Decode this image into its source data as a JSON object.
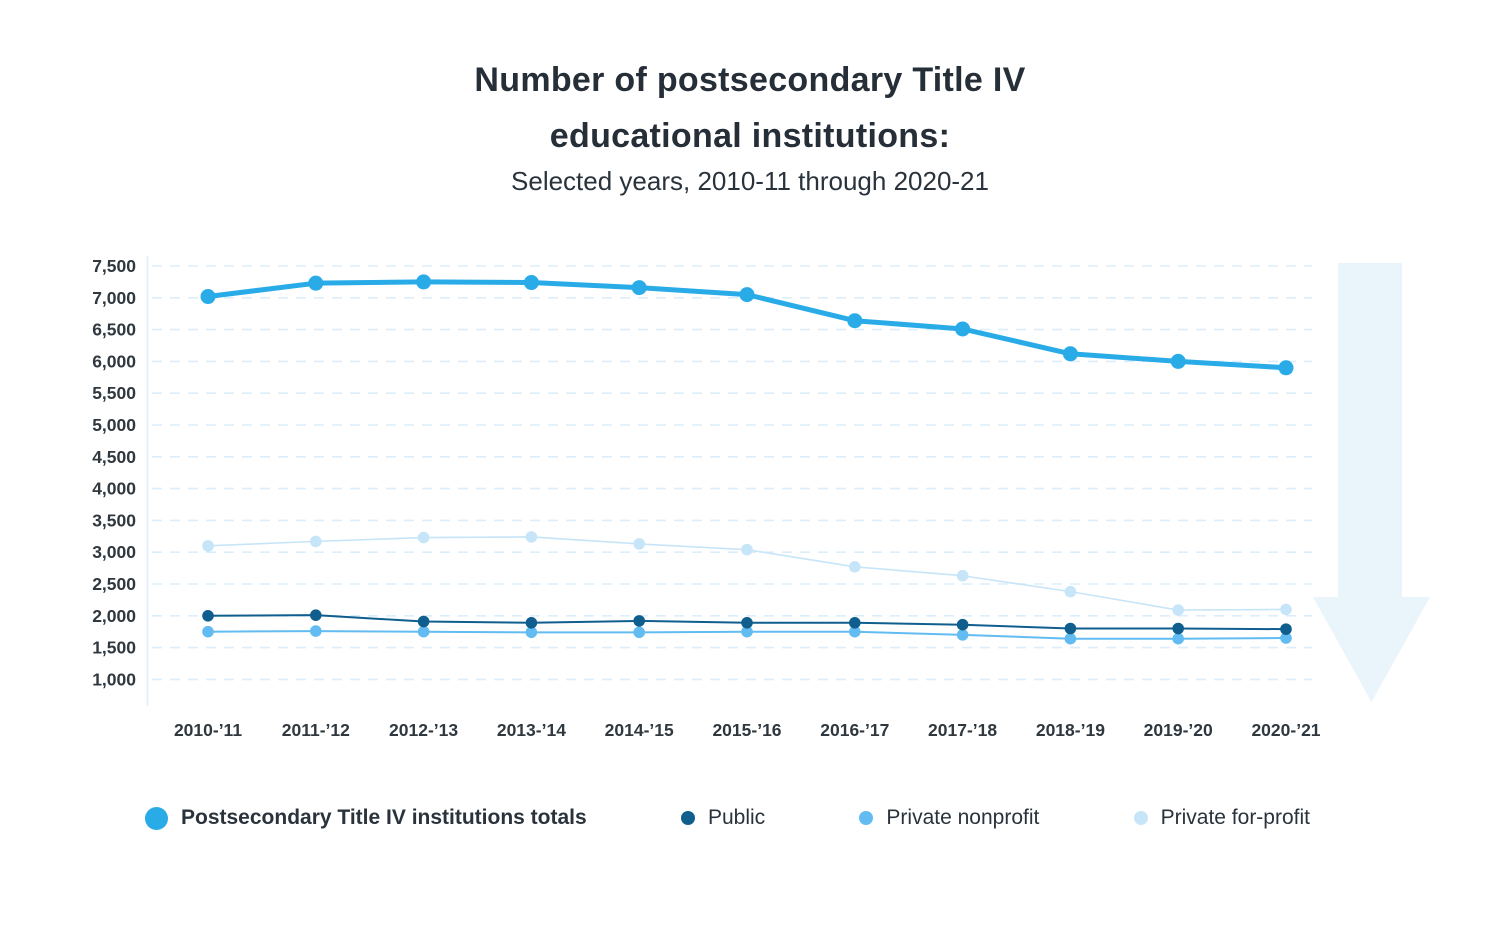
{
  "header": {
    "title_line1": "Number of postsecondary Title IV",
    "title_line2": "educational institutions:",
    "subtitle": "Selected years, 2010-11 through 2020-21"
  },
  "chart_data": {
    "type": "line",
    "title": "Number of postsecondary Title IV educational institutions:",
    "subtitle": "Selected years, 2010-11 through 2020-21",
    "categories": [
      "2010-’11",
      "2011-’12",
      "2012-’13",
      "2013-’14",
      "2014-’15",
      "2015-’16",
      "2016-’17",
      "2017-’18",
      "2018-’19",
      "2019-’20",
      "2020-’21"
    ],
    "y_axis": {
      "min": 1000,
      "max": 7500,
      "step": 500,
      "tick_labels": [
        "1,000",
        "1,500",
        "2,000",
        "2,500",
        "3,000",
        "3,500",
        "4,000",
        "4,500",
        "5,000",
        "5,500",
        "6,000",
        "6,500",
        "7,000",
        "7,500"
      ]
    },
    "grid": "horizontal-dashed",
    "legend_position": "bottom",
    "series": [
      {
        "name": "Postsecondary Title IV institutions totals",
        "color": "#29ABE8",
        "emphasis": true,
        "values": [
          7020,
          7230,
          7250,
          7240,
          7160,
          7050,
          6640,
          6510,
          6120,
          6000,
          5900
        ]
      },
      {
        "name": "Public",
        "color": "#0F5E8E",
        "emphasis": false,
        "values": [
          2000,
          2010,
          1910,
          1890,
          1920,
          1890,
          1890,
          1860,
          1800,
          1800,
          1790
        ]
      },
      {
        "name": "Private nonprofit",
        "color": "#62BCF1",
        "emphasis": false,
        "values": [
          1750,
          1760,
          1750,
          1740,
          1740,
          1750,
          1750,
          1700,
          1640,
          1640,
          1650
        ]
      },
      {
        "name": "Private for-profit",
        "color": "#C7E5F8",
        "emphasis": false,
        "values": [
          3100,
          3170,
          3230,
          3240,
          3130,
          3040,
          2770,
          2630,
          2380,
          2090,
          2100
        ]
      }
    ],
    "annotations": [
      {
        "type": "down-arrow",
        "position": "right",
        "color": "#E9F4FB"
      }
    ]
  },
  "colors": {
    "background": "#FFFFFF",
    "gridline": "#DCEEFA",
    "axis_line": "#E4F1FB",
    "title_text": "#262F38",
    "tick_text": "#30383F",
    "legend_text": "#2A333C",
    "arrow": "#E9F4FB"
  }
}
